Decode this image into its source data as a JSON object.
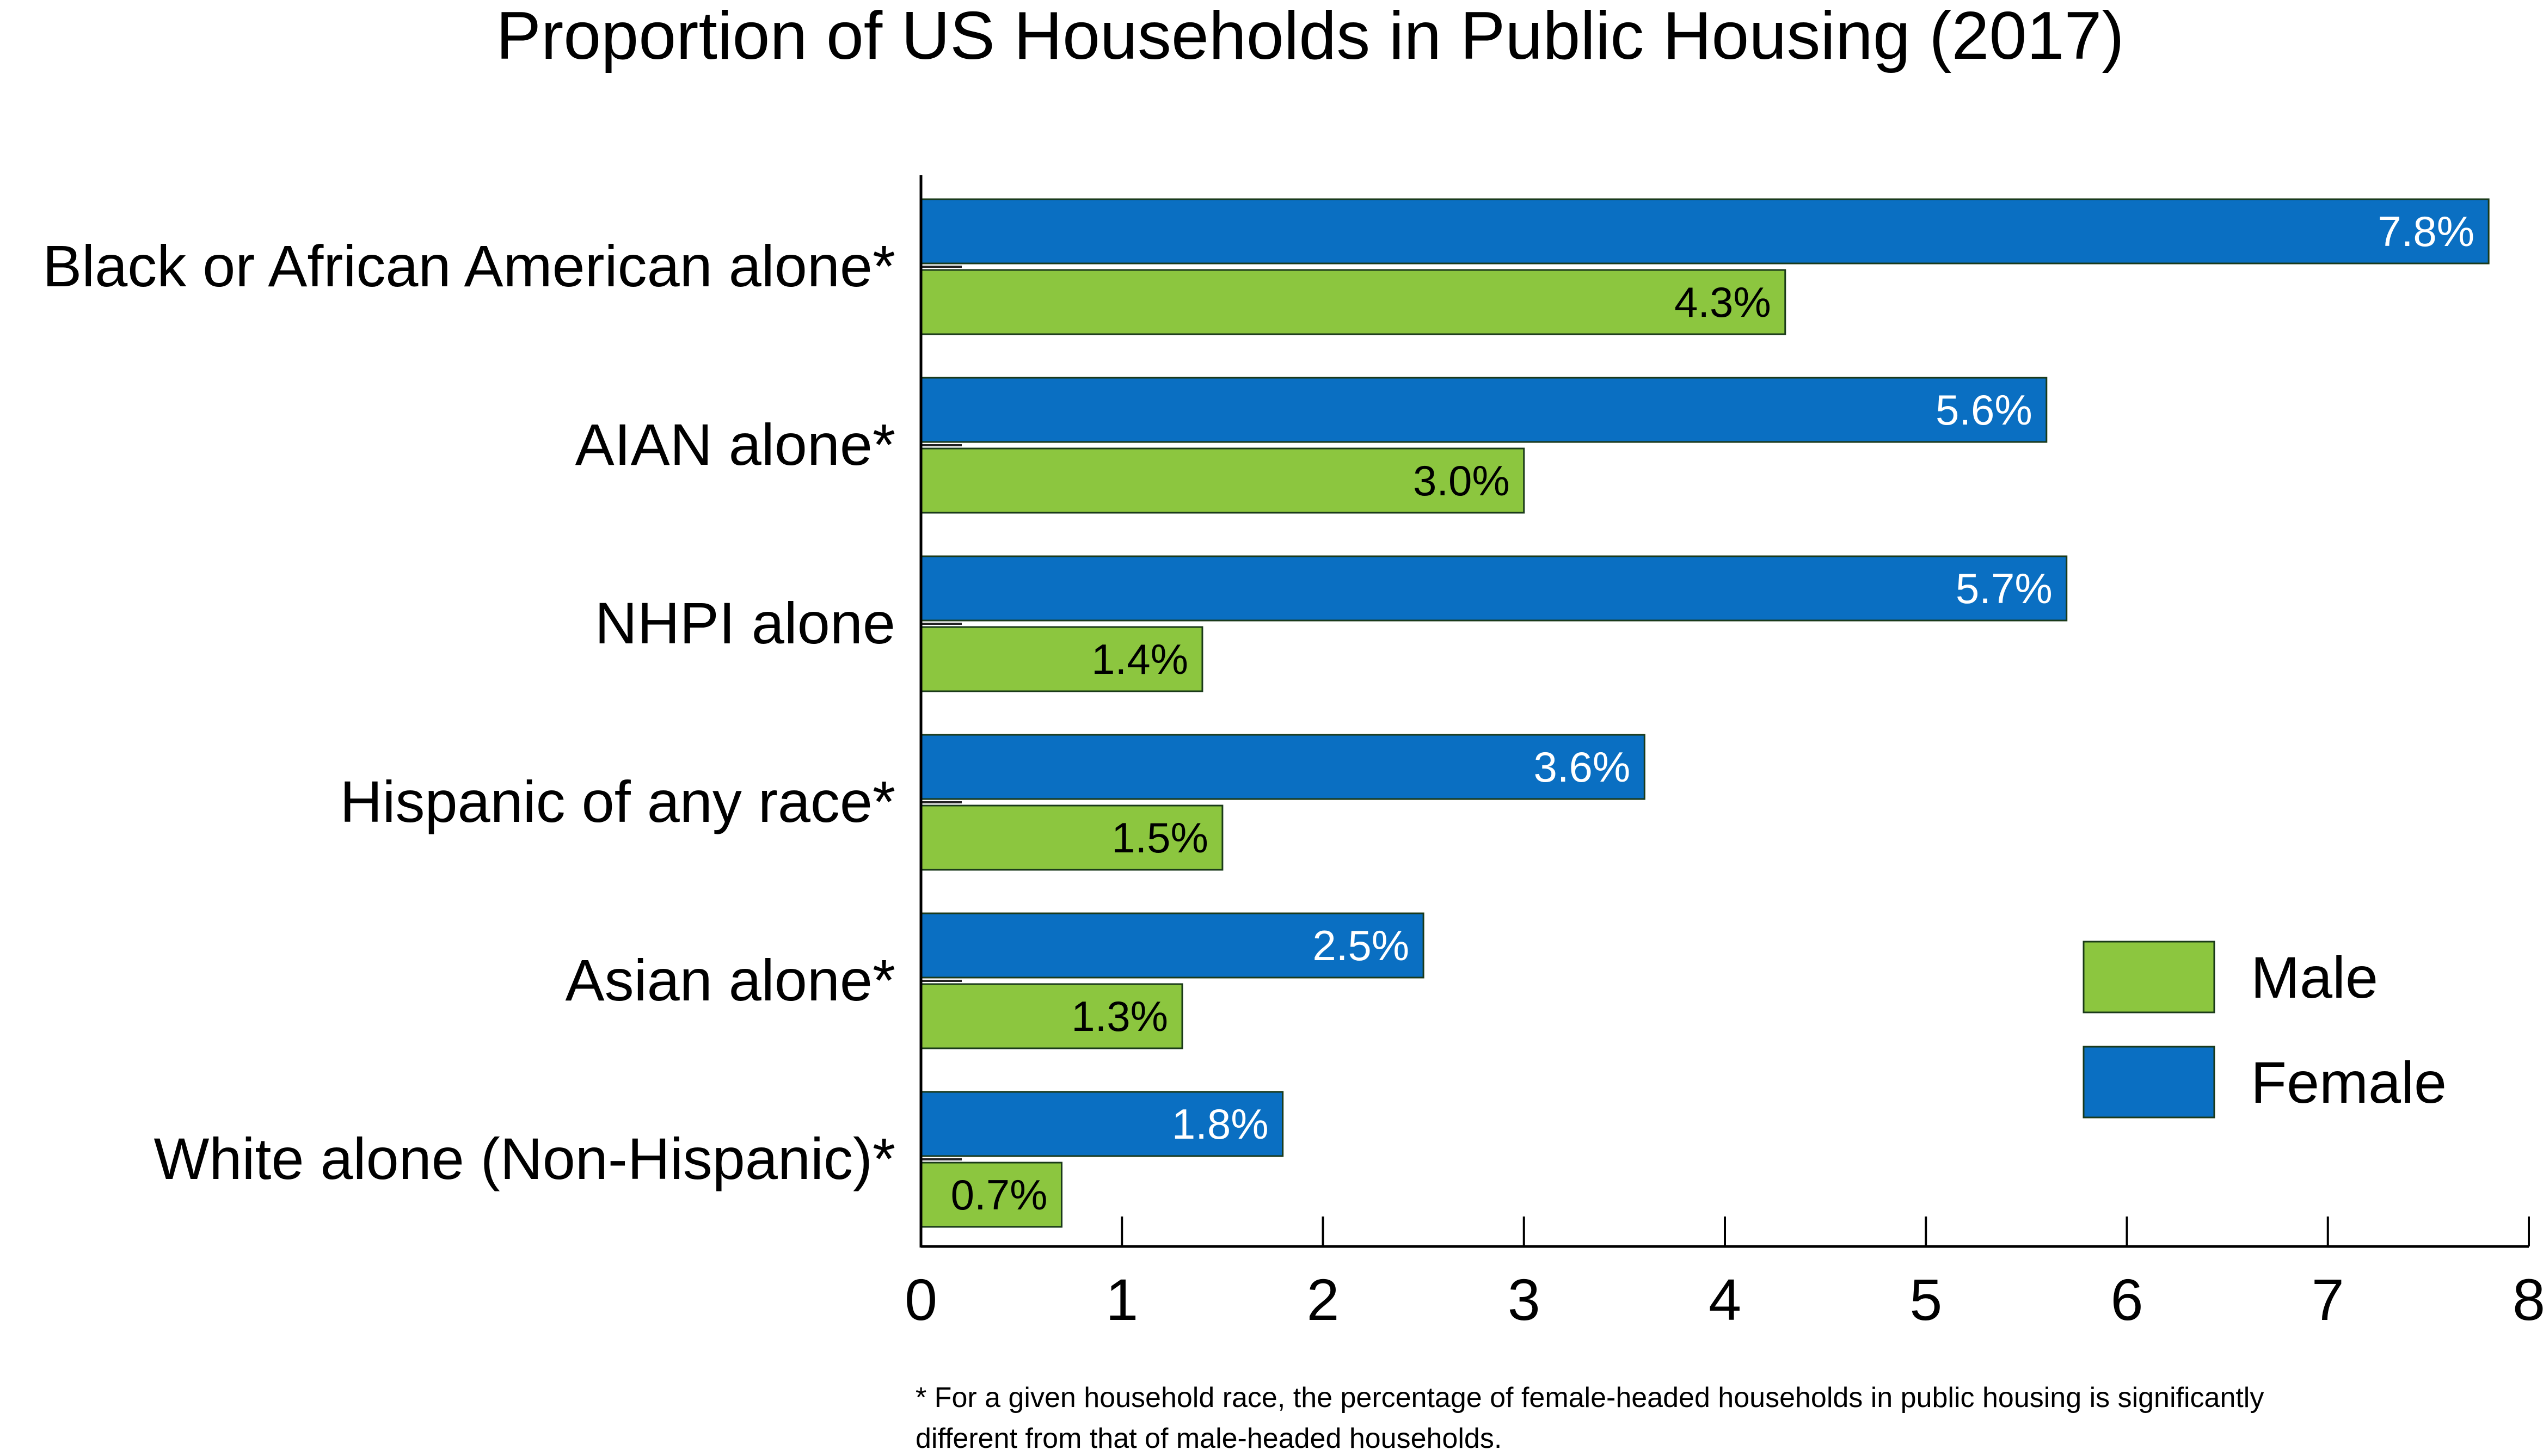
{
  "chart_data": {
    "type": "bar",
    "orientation": "horizontal",
    "title": "Proportion of US Households in Public Housing (2017)",
    "categories": [
      "Black or African American alone*",
      "AIAN alone*",
      "NHPI alone",
      "Hispanic of any race*",
      "Asian alone*",
      "White alone (Non-Hispanic)*"
    ],
    "series": [
      {
        "name": "Female",
        "color": "#0a6fc2",
        "label_color": "#ffffff",
        "values": [
          7.8,
          5.6,
          5.7,
          3.6,
          2.5,
          1.8
        ],
        "labels": [
          "7.8%",
          "5.6%",
          "5.7%",
          "3.6%",
          "2.5%",
          "1.8%"
        ]
      },
      {
        "name": "Male",
        "color": "#8cc63f",
        "label_color": "#000000",
        "values": [
          4.3,
          3.0,
          1.4,
          1.5,
          1.3,
          0.7
        ],
        "labels": [
          "4.3%",
          "3.0%",
          "1.4%",
          "1.5%",
          "1.3%",
          "0.7%"
        ]
      }
    ],
    "xlim": [
      0,
      8
    ],
    "xticks": [
      "0",
      "1",
      "2",
      "3",
      "4",
      "5",
      "6",
      "7",
      "8"
    ],
    "grid": false,
    "legend": {
      "placement": "right",
      "entries": [
        {
          "name": "Male",
          "color": "#8cc63f"
        },
        {
          "name": "Female",
          "color": "#0a6fc2"
        }
      ]
    },
    "footnote": [
      "* For a given household race, the percentage of female-headed households in public housing is  significantly",
      "different from that of male-headed households."
    ]
  }
}
